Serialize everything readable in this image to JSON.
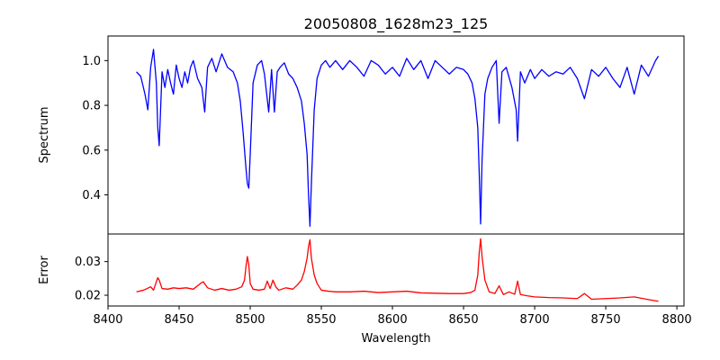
{
  "chart_data": [
    {
      "type": "line",
      "title": "20050808_1628m23_125",
      "ylabel": "Spectrum",
      "xlim": [
        8400,
        8805
      ],
      "ylim": [
        0.225,
        1.11
      ],
      "yticks": [
        0.4,
        0.6,
        0.8,
        1.0
      ],
      "ytick_labels": [
        "0.4",
        "0.6",
        "0.8",
        "1.0"
      ],
      "color": "#0000ff",
      "x": [
        8420,
        8423,
        8426,
        8428,
        8430,
        8432,
        8434,
        8435,
        8436,
        8438,
        8440,
        8442,
        8444,
        8446,
        8448,
        8450,
        8452,
        8454,
        8456,
        8458,
        8460,
        8463,
        8466,
        8468,
        8470,
        8473,
        8476,
        8480,
        8484,
        8488,
        8491,
        8493,
        8495,
        8497,
        8498,
        8499,
        8500,
        8502,
        8505,
        8508,
        8510,
        8513,
        8515,
        8517,
        8519,
        8521,
        8524,
        8527,
        8530,
        8533,
        8536,
        8538,
        8540,
        8541,
        8542,
        8543,
        8545,
        8547,
        8550,
        8553,
        8556,
        8560,
        8565,
        8570,
        8575,
        8580,
        8585,
        8590,
        8595,
        8600,
        8605,
        8610,
        8615,
        8620,
        8625,
        8630,
        8635,
        8640,
        8645,
        8650,
        8653,
        8656,
        8658,
        8660,
        8661,
        8662,
        8663,
        8665,
        8667,
        8670,
        8673,
        8675,
        8677,
        8680,
        8684,
        8687,
        8688,
        8690,
        8693,
        8697,
        8700,
        8705,
        8710,
        8715,
        8720,
        8725,
        8730,
        8735,
        8740,
        8745,
        8750,
        8755,
        8760,
        8765,
        8770,
        8775,
        8780,
        8785,
        8787
      ],
      "y": [
        0.95,
        0.93,
        0.85,
        0.78,
        0.97,
        1.05,
        0.9,
        0.7,
        0.62,
        0.95,
        0.88,
        0.96,
        0.9,
        0.85,
        0.98,
        0.92,
        0.88,
        0.95,
        0.9,
        0.97,
        1.0,
        0.92,
        0.88,
        0.77,
        0.97,
        1.01,
        0.95,
        1.03,
        0.97,
        0.95,
        0.9,
        0.82,
        0.68,
        0.52,
        0.45,
        0.43,
        0.58,
        0.9,
        0.98,
        1.0,
        0.94,
        0.77,
        0.96,
        0.77,
        0.95,
        0.97,
        0.99,
        0.94,
        0.92,
        0.88,
        0.82,
        0.72,
        0.58,
        0.4,
        0.26,
        0.45,
        0.78,
        0.92,
        0.98,
        1.0,
        0.97,
        1.0,
        0.96,
        1.0,
        0.97,
        0.93,
        1.0,
        0.98,
        0.94,
        0.97,
        0.93,
        1.01,
        0.96,
        1.0,
        0.92,
        1.0,
        0.97,
        0.94,
        0.97,
        0.96,
        0.94,
        0.9,
        0.83,
        0.7,
        0.5,
        0.27,
        0.55,
        0.85,
        0.92,
        0.97,
        1.0,
        0.72,
        0.95,
        0.97,
        0.88,
        0.78,
        0.64,
        0.95,
        0.9,
        0.96,
        0.92,
        0.96,
        0.93,
        0.95,
        0.94,
        0.97,
        0.92,
        0.83,
        0.96,
        0.93,
        0.97,
        0.92,
        0.88,
        0.97,
        0.85,
        0.98,
        0.93,
        1.0,
        1.02
      ]
    },
    {
      "type": "line",
      "title": "",
      "xlabel": "Wavelength",
      "ylabel": "Error",
      "xlim": [
        8400,
        8805
      ],
      "ylim": [
        0.0168,
        0.0382
      ],
      "xticks": [
        8400,
        8450,
        8500,
        8550,
        8600,
        8650,
        8700,
        8750,
        8800
      ],
      "xtick_labels": [
        "8400",
        "8450",
        "8500",
        "8550",
        "8600",
        "8650",
        "8700",
        "8750",
        "8800"
      ],
      "yticks": [
        0.02,
        0.03
      ],
      "ytick_labels": [
        "0.02",
        "0.03"
      ],
      "color": "#ff0000",
      "x": [
        8420,
        8425,
        8430,
        8432,
        8434,
        8435,
        8436,
        8438,
        8442,
        8446,
        8450,
        8455,
        8460,
        8465,
        8467,
        8470,
        8475,
        8480,
        8485,
        8490,
        8494,
        8496,
        8497,
        8498,
        8499,
        8500,
        8502,
        8506,
        8510,
        8512,
        8514,
        8516,
        8518,
        8520,
        8525,
        8530,
        8533,
        8536,
        8538,
        8540,
        8541,
        8542,
        8543,
        8545,
        8547,
        8550,
        8555,
        8560,
        8570,
        8580,
        8590,
        8600,
        8610,
        8620,
        8630,
        8640,
        8650,
        8655,
        8658,
        8660,
        8661,
        8662,
        8663,
        8665,
        8668,
        8672,
        8675,
        8678,
        8682,
        8686,
        8688,
        8690,
        8695,
        8700,
        8710,
        8720,
        8730,
        8735,
        8740,
        8750,
        8760,
        8770,
        8780,
        8787
      ],
      "y": [
        0.021,
        0.0215,
        0.0225,
        0.0215,
        0.024,
        0.0252,
        0.0245,
        0.022,
        0.0218,
        0.0222,
        0.022,
        0.0222,
        0.0218,
        0.0235,
        0.024,
        0.0222,
        0.0215,
        0.022,
        0.0215,
        0.0218,
        0.0225,
        0.0245,
        0.0285,
        0.0315,
        0.029,
        0.0235,
        0.0218,
        0.0215,
        0.0218,
        0.0242,
        0.022,
        0.0245,
        0.0225,
        0.0215,
        0.0222,
        0.0218,
        0.023,
        0.0245,
        0.027,
        0.031,
        0.0345,
        0.0365,
        0.031,
        0.026,
        0.0235,
        0.0215,
        0.0212,
        0.021,
        0.021,
        0.0212,
        0.0208,
        0.021,
        0.0212,
        0.0207,
        0.0206,
        0.0205,
        0.0205,
        0.0208,
        0.0215,
        0.026,
        0.0325,
        0.0368,
        0.0315,
        0.0245,
        0.021,
        0.0205,
        0.0228,
        0.0202,
        0.021,
        0.0203,
        0.0242,
        0.0202,
        0.0198,
        0.0195,
        0.0193,
        0.0192,
        0.019,
        0.0205,
        0.0188,
        0.019,
        0.0192,
        0.0195,
        0.0187,
        0.0182
      ]
    }
  ]
}
